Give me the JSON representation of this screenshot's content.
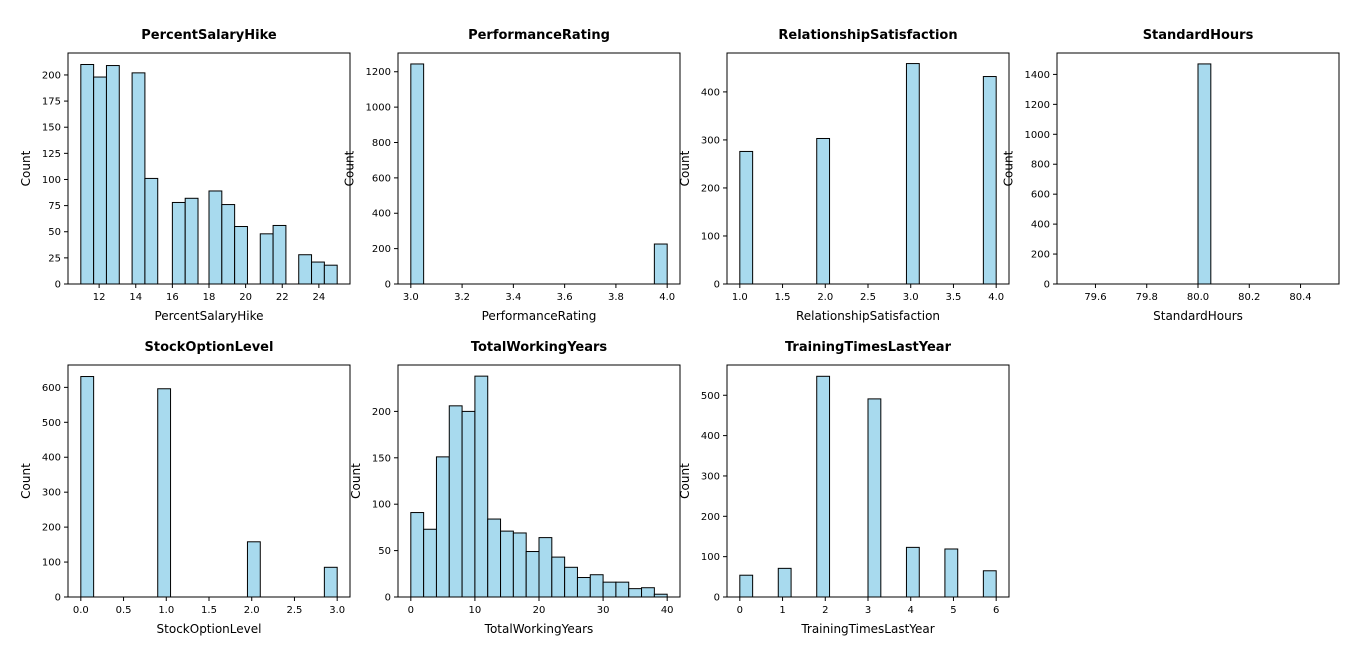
{
  "figure": {
    "background": "#ffffff",
    "bar_color": "#a8daee",
    "edge_color": "#000000"
  },
  "chart_data": [
    {
      "type": "bar",
      "title": "PercentSalaryHike",
      "xlabel": "PercentSalaryHike",
      "ylabel": "Count",
      "xlim": [
        10.3,
        25.7
      ],
      "ylim": [
        0,
        221
      ],
      "xticks": [
        12,
        14,
        16,
        18,
        20,
        22,
        24
      ],
      "xtick_labels": [
        "12",
        "14",
        "16",
        "18",
        "20",
        "22",
        "24"
      ],
      "yticks": [
        0,
        25,
        50,
        75,
        100,
        125,
        150,
        175,
        200
      ],
      "ytick_labels": [
        "0",
        "25",
        "50",
        "75",
        "100",
        "125",
        "150",
        "175",
        "200"
      ],
      "bins": [
        {
          "x0": 11.0,
          "x1": 11.7,
          "value": 210
        },
        {
          "x0": 11.7,
          "x1": 12.4,
          "value": 198
        },
        {
          "x0": 12.4,
          "x1": 13.1,
          "value": 209
        },
        {
          "x0": 13.8,
          "x1": 14.5,
          "value": 202
        },
        {
          "x0": 14.5,
          "x1": 15.2,
          "value": 101
        },
        {
          "x0": 16.0,
          "x1": 16.7,
          "value": 78
        },
        {
          "x0": 16.7,
          "x1": 17.4,
          "value": 82
        },
        {
          "x0": 18.0,
          "x1": 18.7,
          "value": 89
        },
        {
          "x0": 18.7,
          "x1": 19.4,
          "value": 76
        },
        {
          "x0": 19.4,
          "x1": 20.1,
          "value": 55
        },
        {
          "x0": 20.8,
          "x1": 21.5,
          "value": 48
        },
        {
          "x0": 21.5,
          "x1": 22.2,
          "value": 56
        },
        {
          "x0": 22.9,
          "x1": 23.6,
          "value": 28
        },
        {
          "x0": 23.6,
          "x1": 24.3,
          "value": 21
        },
        {
          "x0": 24.3,
          "x1": 25.0,
          "value": 18
        }
      ]
    },
    {
      "type": "bar",
      "title": "PerformanceRating",
      "xlabel": "PerformanceRating",
      "ylabel": "Count",
      "xlim": [
        2.95,
        4.05
      ],
      "ylim": [
        0,
        1306
      ],
      "xticks": [
        3.0,
        3.2,
        3.4,
        3.6,
        3.8,
        4.0
      ],
      "xtick_labels": [
        "3.0",
        "3.2",
        "3.4",
        "3.6",
        "3.8",
        "4.0"
      ],
      "yticks": [
        0,
        200,
        400,
        600,
        800,
        1000,
        1200
      ],
      "ytick_labels": [
        "0",
        "200",
        "400",
        "600",
        "800",
        "1000",
        "1200"
      ],
      "bins": [
        {
          "x0": 3.0,
          "x1": 3.05,
          "value": 1244
        },
        {
          "x0": 3.95,
          "x1": 4.0,
          "value": 226
        }
      ]
    },
    {
      "type": "bar",
      "title": "RelationshipSatisfaction",
      "xlabel": "RelationshipSatisfaction",
      "ylabel": "Count",
      "xlim": [
        0.85,
        4.15
      ],
      "ylim": [
        0,
        481
      ],
      "xticks": [
        1.0,
        1.5,
        2.0,
        2.5,
        3.0,
        3.5,
        4.0
      ],
      "xtick_labels": [
        "1.0",
        "1.5",
        "2.0",
        "2.5",
        "3.0",
        "3.5",
        "4.0"
      ],
      "yticks": [
        0,
        100,
        200,
        300,
        400
      ],
      "ytick_labels": [
        "0",
        "100",
        "200",
        "300",
        "400"
      ],
      "bins": [
        {
          "x0": 1.0,
          "x1": 1.15,
          "value": 276
        },
        {
          "x0": 1.9,
          "x1": 2.05,
          "value": 303
        },
        {
          "x0": 2.95,
          "x1": 3.1,
          "value": 459
        },
        {
          "x0": 3.85,
          "x1": 4.0,
          "value": 432
        }
      ]
    },
    {
      "type": "bar",
      "title": "StandardHours",
      "xlabel": "StandardHours",
      "ylabel": "Count",
      "xlim": [
        79.45,
        80.55
      ],
      "ylim": [
        0,
        1543
      ],
      "xticks": [
        79.6,
        79.8,
        80.0,
        80.2,
        80.4
      ],
      "xtick_labels": [
        "79.6",
        "79.8",
        "80.0",
        "80.2",
        "80.4"
      ],
      "yticks": [
        0,
        200,
        400,
        600,
        800,
        1000,
        1200,
        1400
      ],
      "ytick_labels": [
        "0",
        "200",
        "400",
        "600",
        "800",
        "1000",
        "1200",
        "1400"
      ],
      "bins": [
        {
          "x0": 79.5,
          "x1": 79.55,
          "value": 0
        },
        {
          "x0": 79.55,
          "x1": 79.6,
          "value": 0
        },
        {
          "x0": 79.6,
          "x1": 79.65,
          "value": 0
        },
        {
          "x0": 79.65,
          "x1": 79.7,
          "value": 0
        },
        {
          "x0": 79.7,
          "x1": 79.75,
          "value": 0
        },
        {
          "x0": 79.75,
          "x1": 79.8,
          "value": 0
        },
        {
          "x0": 79.8,
          "x1": 79.85,
          "value": 0
        },
        {
          "x0": 79.85,
          "x1": 79.9,
          "value": 0
        },
        {
          "x0": 79.9,
          "x1": 79.95,
          "value": 0
        },
        {
          "x0": 79.95,
          "x1": 80.0,
          "value": 0
        },
        {
          "x0": 80.0,
          "x1": 80.05,
          "value": 1470
        },
        {
          "x0": 80.05,
          "x1": 80.1,
          "value": 0
        },
        {
          "x0": 80.1,
          "x1": 80.15,
          "value": 0
        },
        {
          "x0": 80.15,
          "x1": 80.2,
          "value": 0
        },
        {
          "x0": 80.2,
          "x1": 80.25,
          "value": 0
        },
        {
          "x0": 80.25,
          "x1": 80.3,
          "value": 0
        },
        {
          "x0": 80.3,
          "x1": 80.35,
          "value": 0
        },
        {
          "x0": 80.35,
          "x1": 80.4,
          "value": 0
        },
        {
          "x0": 80.4,
          "x1": 80.45,
          "value": 0
        },
        {
          "x0": 80.45,
          "x1": 80.5,
          "value": 0
        }
      ]
    },
    {
      "type": "bar",
      "title": "StockOptionLevel",
      "xlabel": "StockOptionLevel",
      "ylabel": "Count",
      "xlim": [
        -0.15,
        3.15
      ],
      "ylim": [
        0,
        664
      ],
      "xticks": [
        0.0,
        0.5,
        1.0,
        1.5,
        2.0,
        2.5,
        3.0
      ],
      "xtick_labels": [
        "0.0",
        "0.5",
        "1.0",
        "1.5",
        "2.0",
        "2.5",
        "3.0"
      ],
      "yticks": [
        0,
        100,
        200,
        300,
        400,
        500,
        600
      ],
      "ytick_labels": [
        "0",
        "100",
        "200",
        "300",
        "400",
        "500",
        "600"
      ],
      "bins": [
        {
          "x0": 0.0,
          "x1": 0.15,
          "value": 631
        },
        {
          "x0": 0.9,
          "x1": 1.05,
          "value": 596
        },
        {
          "x0": 1.95,
          "x1": 2.1,
          "value": 158
        },
        {
          "x0": 2.85,
          "x1": 3.0,
          "value": 85
        }
      ]
    },
    {
      "type": "bar",
      "title": "TotalWorkingYears",
      "xlabel": "TotalWorkingYears",
      "ylabel": "Count",
      "xlim": [
        -2.0,
        42.0
      ],
      "ylim": [
        0,
        250
      ],
      "xticks": [
        0,
        10,
        20,
        30,
        40
      ],
      "xtick_labels": [
        "0",
        "10",
        "20",
        "30",
        "40"
      ],
      "yticks": [
        0,
        50,
        100,
        150,
        200
      ],
      "ytick_labels": [
        "0",
        "50",
        "100",
        "150",
        "200"
      ],
      "bins": [
        {
          "x0": 0,
          "x1": 2,
          "value": 91
        },
        {
          "x0": 2,
          "x1": 4,
          "value": 73
        },
        {
          "x0": 4,
          "x1": 6,
          "value": 151
        },
        {
          "x0": 6,
          "x1": 8,
          "value": 206
        },
        {
          "x0": 8,
          "x1": 10,
          "value": 200
        },
        {
          "x0": 10,
          "x1": 12,
          "value": 238
        },
        {
          "x0": 12,
          "x1": 14,
          "value": 84
        },
        {
          "x0": 14,
          "x1": 16,
          "value": 71
        },
        {
          "x0": 16,
          "x1": 18,
          "value": 69
        },
        {
          "x0": 18,
          "x1": 20,
          "value": 49
        },
        {
          "x0": 20,
          "x1": 22,
          "value": 64
        },
        {
          "x0": 22,
          "x1": 24,
          "value": 43
        },
        {
          "x0": 24,
          "x1": 26,
          "value": 32
        },
        {
          "x0": 26,
          "x1": 28,
          "value": 21
        },
        {
          "x0": 28,
          "x1": 30,
          "value": 24
        },
        {
          "x0": 30,
          "x1": 32,
          "value": 16
        },
        {
          "x0": 32,
          "x1": 34,
          "value": 16
        },
        {
          "x0": 34,
          "x1": 36,
          "value": 9
        },
        {
          "x0": 36,
          "x1": 38,
          "value": 10
        },
        {
          "x0": 38,
          "x1": 40,
          "value": 3
        }
      ]
    },
    {
      "type": "bar",
      "title": "TrainingTimesLastYear",
      "xlabel": "TrainingTimesLastYear",
      "ylabel": "Count",
      "xlim": [
        -0.3,
        6.3
      ],
      "ylim": [
        0,
        575
      ],
      "xticks": [
        0,
        1,
        2,
        3,
        4,
        5,
        6
      ],
      "xtick_labels": [
        "0",
        "1",
        "2",
        "3",
        "4",
        "5",
        "6"
      ],
      "yticks": [
        0,
        100,
        200,
        300,
        400,
        500
      ],
      "ytick_labels": [
        "0",
        "100",
        "200",
        "300",
        "400",
        "500"
      ],
      "bins": [
        {
          "x0": 0.0,
          "x1": 0.3,
          "value": 54
        },
        {
          "x0": 0.9,
          "x1": 1.2,
          "value": 71
        },
        {
          "x0": 1.8,
          "x1": 2.1,
          "value": 547
        },
        {
          "x0": 3.0,
          "x1": 3.3,
          "value": 491
        },
        {
          "x0": 3.9,
          "x1": 4.2,
          "value": 123
        },
        {
          "x0": 4.8,
          "x1": 5.1,
          "value": 119
        },
        {
          "x0": 5.7,
          "x1": 6.0,
          "value": 65
        }
      ]
    }
  ]
}
